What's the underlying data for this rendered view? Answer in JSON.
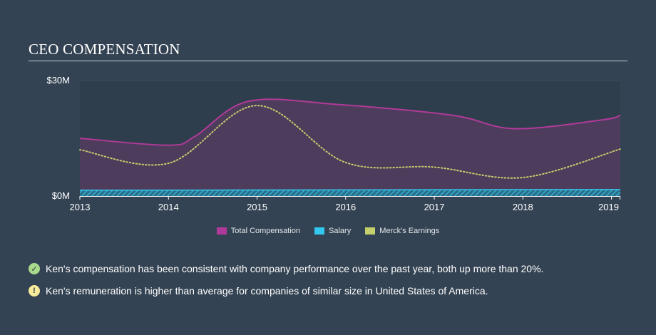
{
  "section": {
    "title": "CEO COMPENSATION"
  },
  "colors": {
    "background": "#344353",
    "plot_background": "#2f3e4d",
    "total_compensation": "#b03a99",
    "total_compensation_fill": "#503c5d",
    "salary": "#33c9ee",
    "earnings": "#c5cf6d",
    "positive_icon": "#a9da8c",
    "warning_icon": "#f8ec9c"
  },
  "chart_data": {
    "type": "area",
    "x": [
      2013,
      2014,
      2015,
      2016,
      2017,
      2018,
      2019
    ],
    "xlim": [
      2013,
      2019.1
    ],
    "ylim": [
      0,
      30
    ],
    "y_unit": "$M",
    "y_tick_labels": [
      {
        "value": 30,
        "label": "$30M"
      },
      {
        "value": 0,
        "label": "$0M"
      }
    ],
    "x_tick_labels": [
      "2013",
      "2014",
      "2015",
      "2016",
      "2017",
      "2018",
      "2019"
    ],
    "grid": true,
    "legend_position": "bottom",
    "series": [
      {
        "name": "Total Compensation",
        "color": "#b03a99",
        "style": "area",
        "points": [
          [
            2013,
            15.0
          ],
          [
            2014,
            13.2
          ],
          [
            2014.3,
            15.5
          ],
          [
            2014.9,
            24.6
          ],
          [
            2015.9,
            23.8
          ],
          [
            2017.2,
            21.0
          ],
          [
            2017.9,
            17.5
          ],
          [
            2018.9,
            19.8
          ],
          [
            2019.1,
            21.0
          ]
        ]
      },
      {
        "name": "Salary",
        "color": "#33c9ee",
        "style": "hatched-band",
        "points": [
          [
            2013,
            1.5
          ],
          [
            2019.1,
            1.7
          ]
        ]
      },
      {
        "name": "Merck's Earnings",
        "color": "#c5cf6d",
        "style": "dotted-line",
        "points": [
          [
            2013,
            12.0
          ],
          [
            2014,
            8.5
          ],
          [
            2015,
            23.5
          ],
          [
            2016,
            8.7
          ],
          [
            2017,
            7.5
          ],
          [
            2018,
            4.8
          ],
          [
            2019.1,
            12.2
          ]
        ]
      }
    ]
  },
  "notes": [
    {
      "icon": "check-circle-icon",
      "text": "Ken's compensation has been consistent with company performance over the past year, both up more than 20%."
    },
    {
      "icon": "exclamation-circle-icon",
      "text": "Ken's remuneration is higher than average for companies of similar size in United States of America."
    }
  ]
}
